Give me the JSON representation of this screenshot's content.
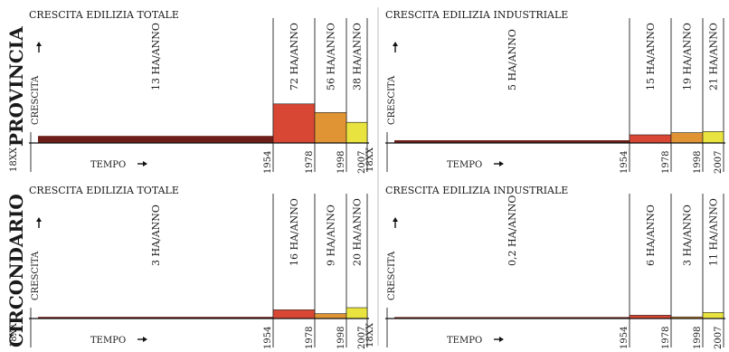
{
  "colors": {
    "baseline": "#6e1e18",
    "p1954": "#d84634",
    "p1978": "#e09433",
    "p1998": "#e8e33e",
    "rule": "#222222",
    "divider": "#bdbdbd"
  },
  "rows": [
    {
      "label": "PROVINCIA"
    },
    {
      "label": "CIRCONDARIO"
    }
  ],
  "chart_data": [
    {
      "type": "bar",
      "row": "PROVINCIA",
      "title": "CRESCITA EDILIZIA TOTALE",
      "ylabel": "CRESCITA",
      "xlabel": "TEMPO",
      "ticks": [
        "18XX",
        "1954",
        "1978",
        "1998",
        "2007"
      ],
      "categories": [
        "18XX–1954",
        "1954–1978",
        "1978–1998",
        "1998–2007"
      ],
      "values": [
        13,
        72,
        56,
        38
      ],
      "rate_labels": [
        "13 HA/ANNO",
        "72 HA/ANNO",
        "56 HA/ANNO",
        "38 HA/ANNO"
      ],
      "unit": "HA/ANNO"
    },
    {
      "type": "bar",
      "row": "PROVINCIA",
      "title": "CRESCITA EDILIZIA INDUSTRIALE",
      "ylabel": "CRESCITA",
      "xlabel": "TEMPO",
      "ticks": [
        "18XX",
        "1954",
        "1978",
        "1998",
        "2007"
      ],
      "categories": [
        "18XX–1954",
        "1954–1978",
        "1978–1998",
        "1998–2007"
      ],
      "values": [
        5,
        15,
        19,
        21
      ],
      "rate_labels": [
        "5 HA/ANNO",
        "15 HA/ANNO",
        "19 HA/ANNO",
        "21 HA/ANNO"
      ],
      "unit": "HA/ANNO"
    },
    {
      "type": "bar",
      "row": "CIRCONDARIO",
      "title": "CRESCITA EDILIZIA TOTALE",
      "ylabel": "CRESCITA",
      "xlabel": "TEMPO",
      "ticks": [
        "18XX",
        "1954",
        "1978",
        "1998",
        "2007"
      ],
      "categories": [
        "18XX–1954",
        "1954–1978",
        "1978–1998",
        "1998–2007"
      ],
      "values": [
        3,
        16,
        9,
        20
      ],
      "rate_labels": [
        "3 HA/ANNO",
        "16 HA/ANNO",
        "9 HA/ANNO",
        "20 HA/ANNO"
      ],
      "unit": "HA/ANNO"
    },
    {
      "type": "bar",
      "row": "CIRCONDARIO",
      "title": "CRESCITA EDILIZIA INDUSTRIALE",
      "ylabel": "CRESCITA",
      "xlabel": "TEMPO",
      "ticks": [
        "18XX",
        "1954",
        "1978",
        "1998",
        "2007"
      ],
      "categories": [
        "18XX–1954",
        "1954–1978",
        "1978–1998",
        "1998–2007"
      ],
      "values": [
        0.2,
        6,
        3,
        11
      ],
      "rate_labels": [
        "0,2 HA/ANNO",
        "6 HA/ANNO",
        "3 HA/ANNO",
        "11 HA/ANNO"
      ],
      "unit": "HA/ANNO"
    }
  ]
}
